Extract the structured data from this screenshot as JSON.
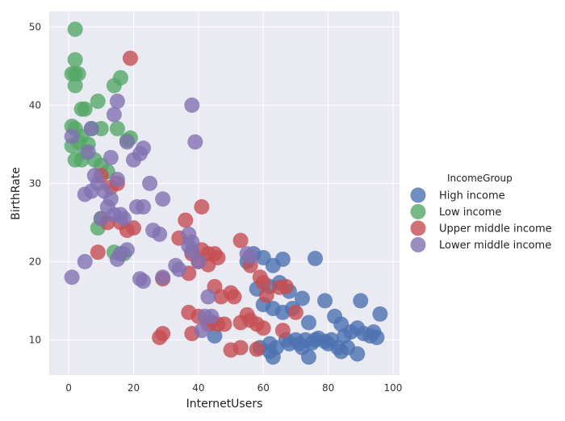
{
  "chart_data": {
    "type": "scatter",
    "title": "",
    "xlabel": "InternetUsers",
    "ylabel": "BirthRate",
    "xlim": [
      -6,
      102
    ],
    "ylim": [
      5.5,
      52
    ],
    "xticks": [
      0,
      20,
      40,
      60,
      80,
      100
    ],
    "yticks": [
      10,
      20,
      30,
      40,
      50
    ],
    "grid": true,
    "legend": {
      "title": "IncomeGroup",
      "position": "right"
    },
    "series": [
      {
        "name": "High income",
        "color": "#4c72b0",
        "points": [
          [
            55,
            20
          ],
          [
            57,
            21
          ],
          [
            60,
            20.5
          ],
          [
            63,
            19.5
          ],
          [
            66,
            20.3
          ],
          [
            76,
            20.4
          ],
          [
            58,
            16.5
          ],
          [
            62,
            16.8
          ],
          [
            65,
            17.3
          ],
          [
            68,
            16.2
          ],
          [
            72,
            15.3
          ],
          [
            79,
            15
          ],
          [
            90,
            15
          ],
          [
            60,
            14.5
          ],
          [
            63,
            14
          ],
          [
            66,
            13.5
          ],
          [
            69,
            14
          ],
          [
            74,
            12.2
          ],
          [
            82,
            13
          ],
          [
            84,
            12
          ],
          [
            96,
            13.3
          ],
          [
            62,
            9.5
          ],
          [
            64,
            9
          ],
          [
            68,
            9.5
          ],
          [
            71,
            9.5
          ],
          [
            73,
            10
          ],
          [
            75,
            9.6
          ],
          [
            77,
            10.2
          ],
          [
            79,
            9.8
          ],
          [
            81,
            10
          ],
          [
            83,
            9
          ],
          [
            85,
            10.5
          ],
          [
            87,
            11
          ],
          [
            89,
            11.5
          ],
          [
            91,
            10.8
          ],
          [
            93,
            10.5
          ],
          [
            94,
            11
          ],
          [
            95,
            10.3
          ],
          [
            86,
            9
          ],
          [
            84,
            8.5
          ],
          [
            80,
            9.5
          ],
          [
            76,
            10
          ],
          [
            72,
            9
          ],
          [
            70,
            10
          ],
          [
            67,
            10
          ],
          [
            59,
            9
          ],
          [
            62,
            8.5
          ],
          [
            63,
            7.8
          ],
          [
            74,
            7.8
          ],
          [
            89,
            8.2
          ],
          [
            45,
            10.5
          ]
        ]
      },
      {
        "name": "Low income",
        "color": "#55a868",
        "points": [
          [
            2,
            49.7
          ],
          [
            1,
            44
          ],
          [
            2,
            44
          ],
          [
            3,
            44
          ],
          [
            2,
            45.8
          ],
          [
            2,
            42.5
          ],
          [
            5,
            39.5
          ],
          [
            4,
            39.5
          ],
          [
            9,
            40.5
          ],
          [
            14,
            42.5
          ],
          [
            16,
            43.5
          ],
          [
            1,
            37.3
          ],
          [
            2,
            37
          ],
          [
            4,
            36
          ],
          [
            3,
            35.3
          ],
          [
            6,
            35
          ],
          [
            1,
            34.8
          ],
          [
            5,
            34
          ],
          [
            7,
            37
          ],
          [
            10,
            37
          ],
          [
            15,
            37
          ],
          [
            18,
            35.5
          ],
          [
            19,
            35.8
          ],
          [
            2,
            33
          ],
          [
            4,
            33
          ],
          [
            8,
            33
          ],
          [
            10,
            32.3
          ],
          [
            12,
            31.5
          ],
          [
            9,
            24.3
          ],
          [
            10,
            25.5
          ],
          [
            14,
            21.2
          ],
          [
            17,
            21
          ]
        ]
      },
      {
        "name": "Upper middle income",
        "color": "#c44e52",
        "points": [
          [
            19,
            46
          ],
          [
            10,
            31
          ],
          [
            13,
            29.5
          ],
          [
            15,
            30
          ],
          [
            9,
            21.2
          ],
          [
            12,
            25
          ],
          [
            16,
            25
          ],
          [
            18,
            24
          ],
          [
            20,
            24.3
          ],
          [
            34,
            23
          ],
          [
            36,
            25.3
          ],
          [
            41,
            27
          ],
          [
            38,
            21
          ],
          [
            41,
            21.5
          ],
          [
            43,
            21
          ],
          [
            45,
            21
          ],
          [
            46,
            20.5
          ],
          [
            40,
            20
          ],
          [
            43,
            19.6
          ],
          [
            37,
            18.5
          ],
          [
            29,
            17.8
          ],
          [
            45,
            16.8
          ],
          [
            47,
            15.5
          ],
          [
            50,
            16
          ],
          [
            51,
            15.5
          ],
          [
            53,
            22.7
          ],
          [
            56,
            19.5
          ],
          [
            59,
            18
          ],
          [
            60,
            17.3
          ],
          [
            65,
            16.7
          ],
          [
            67,
            16.8
          ],
          [
            61,
            15.7
          ],
          [
            55,
            13.2
          ],
          [
            37,
            13.5
          ],
          [
            40,
            13
          ],
          [
            44,
            12.3
          ],
          [
            43,
            12
          ],
          [
            46,
            12
          ],
          [
            48,
            12
          ],
          [
            53,
            12.2
          ],
          [
            56,
            12.5
          ],
          [
            58,
            12
          ],
          [
            60,
            11.5
          ],
          [
            66,
            11.2
          ],
          [
            70,
            13.5
          ],
          [
            28,
            10.3
          ],
          [
            29,
            10.8
          ],
          [
            38,
            10.8
          ],
          [
            50,
            8.7
          ],
          [
            53,
            9
          ],
          [
            58,
            8.8
          ]
        ]
      },
      {
        "name": "Lower middle income",
        "color": "#8172b2",
        "points": [
          [
            1,
            36
          ],
          [
            1,
            18
          ],
          [
            5,
            20
          ],
          [
            5,
            28.6
          ],
          [
            6,
            34
          ],
          [
            7,
            37
          ],
          [
            7,
            29
          ],
          [
            8,
            31
          ],
          [
            9,
            30
          ],
          [
            10,
            25.5
          ],
          [
            11,
            29
          ],
          [
            12,
            27
          ],
          [
            13,
            28
          ],
          [
            13,
            33.3
          ],
          [
            14,
            26
          ],
          [
            15,
            40.5
          ],
          [
            15,
            30.5
          ],
          [
            16,
            26
          ],
          [
            17,
            25.5
          ],
          [
            18,
            21.5
          ],
          [
            16,
            21
          ],
          [
            15,
            20.3
          ],
          [
            14,
            38.8
          ],
          [
            18,
            35.3
          ],
          [
            20,
            33
          ],
          [
            21,
            27
          ],
          [
            22,
            33.8
          ],
          [
            23,
            34.5
          ],
          [
            23,
            27
          ],
          [
            25,
            30
          ],
          [
            26,
            24
          ],
          [
            28,
            23.5
          ],
          [
            29,
            28
          ],
          [
            22,
            17.8
          ],
          [
            23,
            17.5
          ],
          [
            29,
            18
          ],
          [
            33,
            19.5
          ],
          [
            34,
            19
          ],
          [
            37,
            23.5
          ],
          [
            38,
            22.5
          ],
          [
            37,
            22
          ],
          [
            38,
            21.3
          ],
          [
            38,
            40
          ],
          [
            39,
            35.3
          ],
          [
            40,
            20
          ],
          [
            41,
            11.2
          ],
          [
            43,
            15.5
          ],
          [
            42,
            13
          ],
          [
            44,
            13
          ],
          [
            55,
            21
          ],
          [
            56,
            20.7
          ]
        ]
      }
    ]
  }
}
